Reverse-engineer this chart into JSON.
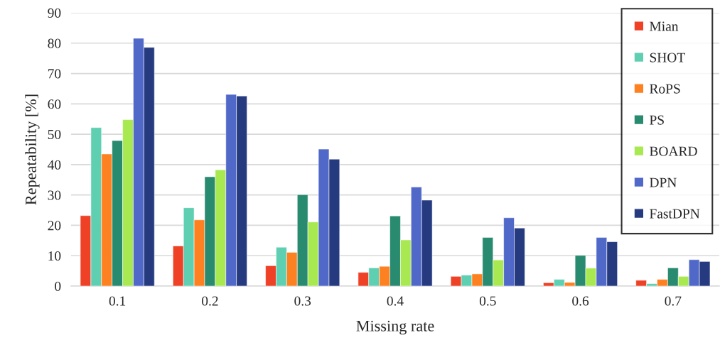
{
  "chart_data": {
    "type": "bar",
    "xlabel": "Missing rate",
    "ylabel": "Repeatability [%]",
    "categories": [
      "0.1",
      "0.2",
      "0.3",
      "0.4",
      "0.5",
      "0.6",
      "0.7"
    ],
    "series": [
      {
        "name": "Mian",
        "color": "#ee4126",
        "values": [
          23.2,
          13.2,
          6.7,
          4.5,
          3.2,
          1.1,
          1.9
        ]
      },
      {
        "name": "SHOT",
        "color": "#5fcfb2",
        "values": [
          52.2,
          25.8,
          12.8,
          6.0,
          3.6,
          2.2,
          0.8
        ]
      },
      {
        "name": "RoPS",
        "color": "#fe8121",
        "values": [
          43.5,
          21.8,
          11.1,
          6.5,
          4.0,
          1.2,
          2.2
        ]
      },
      {
        "name": "PS",
        "color": "#288a6f",
        "values": [
          47.9,
          36.0,
          30.1,
          23.1,
          16.0,
          10.1,
          6.0
        ]
      },
      {
        "name": "BOARD",
        "color": "#a8e952",
        "values": [
          54.8,
          38.3,
          21.1,
          15.2,
          8.6,
          5.9,
          3.2
        ]
      },
      {
        "name": "DPN",
        "color": "#5068c8",
        "values": [
          81.6,
          63.1,
          45.1,
          32.6,
          22.5,
          16.0,
          8.7
        ]
      },
      {
        "name": "FastDPN",
        "color": "#263a80",
        "values": [
          78.6,
          62.6,
          41.8,
          28.3,
          19.1,
          14.6,
          8.1
        ]
      }
    ],
    "ylim": [
      0,
      90
    ],
    "yticks": [
      0,
      10,
      20,
      30,
      40,
      50,
      60,
      70,
      80,
      90
    ],
    "grid": "y",
    "legend": "top right"
  }
}
